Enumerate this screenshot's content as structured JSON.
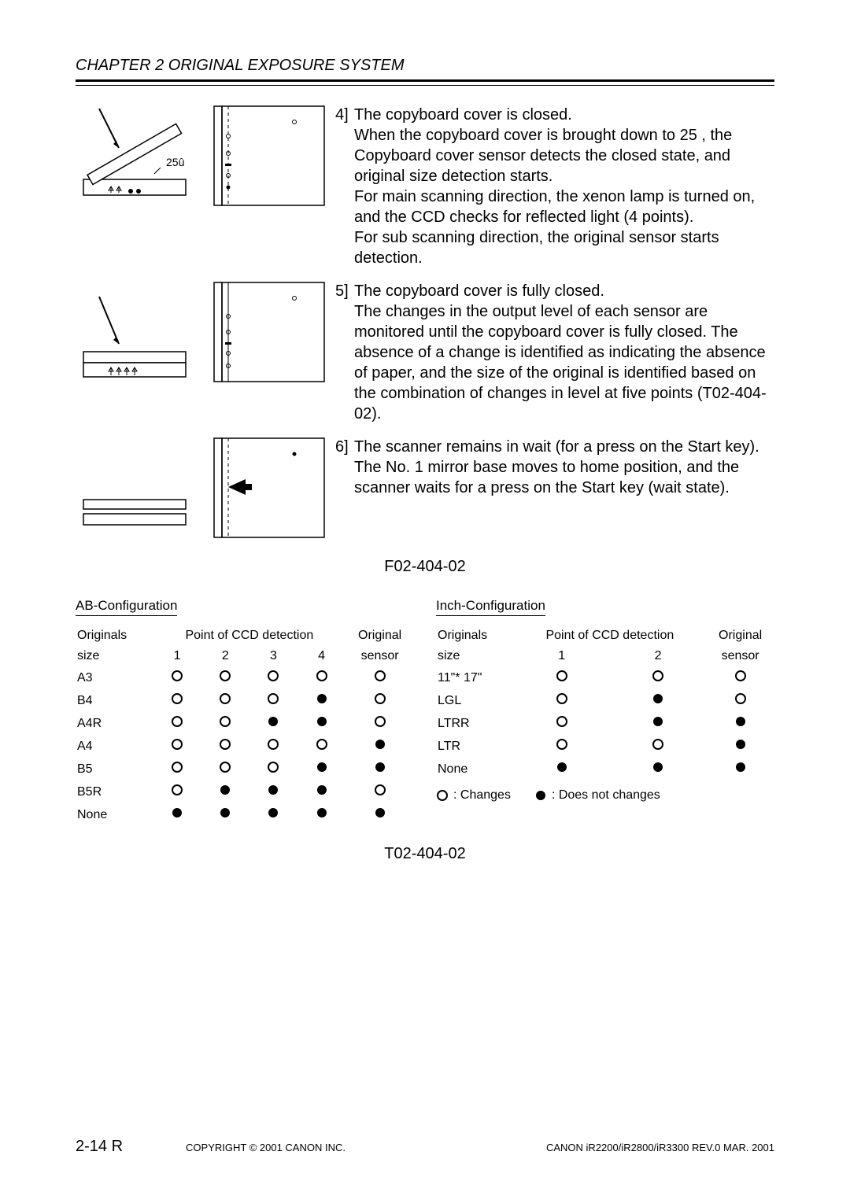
{
  "header": "CHAPTER 2 ORIGINAL EXPOSURE SYSTEM",
  "angle_label": "25û",
  "item4": {
    "num": "4]",
    "lines": "The copyboard cover is closed.\nWhen the copyboard cover is brought down to 25 , the Copyboard cover sensor detects the  closed  state, and original size detection starts.\nFor main scanning direction, the xenon lamp is turned on, and the CCD checks for reflected light (4 points).\nFor sub scanning direction, the original sensor starts detection."
  },
  "item5": {
    "num": "5]",
    "lines": "The copyboard cover is fully closed.\nThe changes in the output level of each sensor are monitored until the copyboard cover is fully closed. The absence of a change is identified as indicating the absence of paper, and the size of the original is identified based on the combination of changes in level at five points (T02-404-02)."
  },
  "item6": {
    "num": "6]",
    "lines": "The scanner remains in wait (for a press on the Start key).\nThe No. 1 mirror base moves to home position, and the scanner waits for a press on the Start key (wait state)."
  },
  "fig_caption": "F02-404-02",
  "tableA": {
    "title": "AB-Configuration",
    "h_orig": "Originals",
    "h_size": "size",
    "h_point": "Point of CCD detection",
    "h1": "1",
    "h2": "2",
    "h3": "3",
    "h4": "4",
    "h_orig_sensor": "Original",
    "h_sensor": "sensor",
    "rows": [
      {
        "s": "A3",
        "c": [
          "o",
          "o",
          "o",
          "o",
          "o"
        ]
      },
      {
        "s": "B4",
        "c": [
          "o",
          "o",
          "o",
          "f",
          "o"
        ]
      },
      {
        "s": "A4R",
        "c": [
          "o",
          "o",
          "f",
          "f",
          "o"
        ]
      },
      {
        "s": "A4",
        "c": [
          "o",
          "o",
          "o",
          "o",
          "f"
        ]
      },
      {
        "s": "B5",
        "c": [
          "o",
          "o",
          "o",
          "f",
          "f"
        ]
      },
      {
        "s": "B5R",
        "c": [
          "o",
          "f",
          "f",
          "f",
          "o"
        ]
      },
      {
        "s": "None",
        "c": [
          "f",
          "f",
          "f",
          "f",
          "f"
        ]
      }
    ]
  },
  "tableB": {
    "title": "Inch-Configuration",
    "h_orig": "Originals",
    "h_size": "size",
    "h_point": "Point of CCD detection",
    "h1": "1",
    "h2": "2",
    "h_orig_sensor": "Original",
    "h_sensor": "sensor",
    "rows": [
      {
        "s": "11\"* 17\"",
        "c": [
          "o",
          "o",
          "o"
        ]
      },
      {
        "s": "LGL",
        "c": [
          "o",
          "f",
          "o"
        ]
      },
      {
        "s": "LTRR",
        "c": [
          "o",
          "f",
          "f"
        ]
      },
      {
        "s": "LTR",
        "c": [
          "o",
          "o",
          "f"
        ]
      },
      {
        "s": "None",
        "c": [
          "f",
          "f",
          "f"
        ]
      }
    ]
  },
  "legend_changes": ": Changes",
  "legend_notchanges": ": Does not changes",
  "table_caption": "T02-404-02",
  "footer": {
    "page": "2-14 R",
    "copyright": "COPYRIGHT © 2001 CANON INC.",
    "rev": "CANON iR2200/iR2800/iR3300 REV.0 MAR. 2001"
  }
}
